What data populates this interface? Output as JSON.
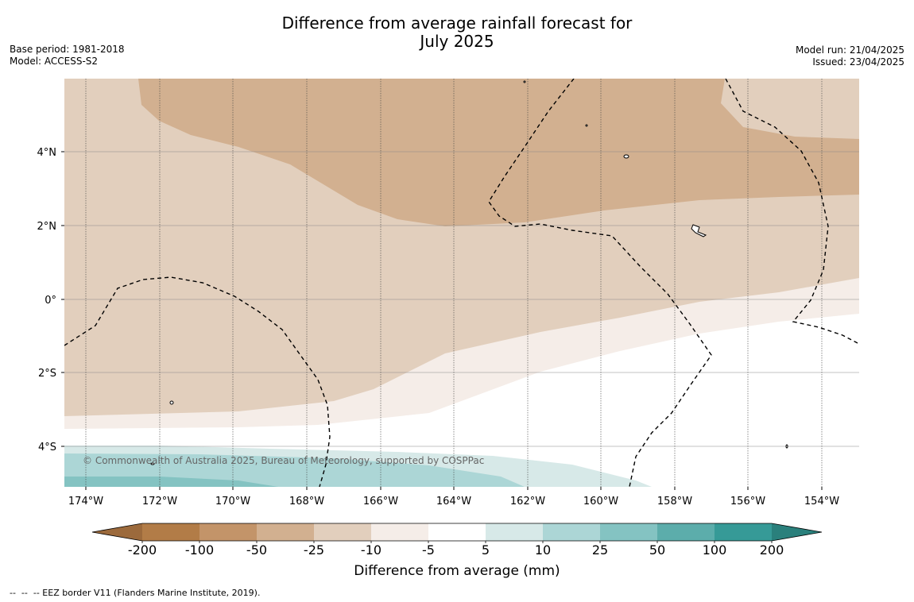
{
  "title": {
    "line1": "Difference from average rainfall forecast for",
    "line2": "July 2025"
  },
  "meta_left": {
    "base_period": "Base period: 1981-2018",
    "model": "Model: ACCESS-S2"
  },
  "meta_right": {
    "model_run": "Model run: 21/04/2025",
    "issued": "Issued: 23/04/2025"
  },
  "map": {
    "copyright": "© Commonwealth of Australia 2025, Bureau of Meteorology, supported by COSPPac",
    "lat_labels": [
      "4°N",
      "2°N",
      "0°",
      "2°S",
      "4°S"
    ],
    "lon_labels": [
      "174°W",
      "172°W",
      "170°W",
      "168°W",
      "166°W",
      "164°W",
      "162°W",
      "160°W",
      "158°W",
      "156°W",
      "154°W"
    ]
  },
  "colorbar": {
    "ticks": [
      "-200",
      "-100",
      "-50",
      "-25",
      "-10",
      "-5",
      "5",
      "10",
      "25",
      "50",
      "100",
      "200"
    ],
    "colors": [
      "#9c6a3c",
      "#b27c47",
      "#c39469",
      "#d2b090",
      "#e2cfbd",
      "#f5ede8",
      "#ffffff",
      "#d7e9e8",
      "#acd6d6",
      "#84c3c2",
      "#5cadab",
      "#369a97",
      "#2a807c"
    ],
    "label": "Difference from average (mm)"
  },
  "footnote": "--  --  -- EEZ border V11 (Flanders Marine Institute, 2019)."
}
